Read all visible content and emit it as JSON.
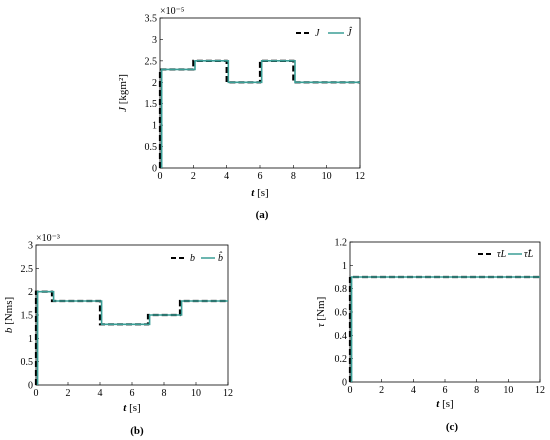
{
  "chart_data": [
    {
      "id": "a",
      "type": "line",
      "caption": "(a)",
      "xlabel_var": "t",
      "xlabel_unit": " [s]",
      "ylabel_var": "J",
      "ylabel_unit": " [kgm²]",
      "exponent": "×10⁻⁵",
      "xlim": [
        0,
        12
      ],
      "ylim": [
        0,
        3.5
      ],
      "xticks": [
        0,
        2,
        4,
        6,
        8,
        10,
        12
      ],
      "yticks": [
        0,
        0.5,
        1,
        1.5,
        2,
        2.5,
        3,
        3.5
      ],
      "series": [
        {
          "name": "J",
          "style": "dashed",
          "color": "#000000",
          "x": [
            0.0,
            0.0,
            2.0,
            2.0,
            4.0,
            4.0,
            6.0,
            6.0,
            8.0,
            8.0,
            12.0
          ],
          "y": [
            0.0,
            2.3,
            2.3,
            2.5,
            2.5,
            2.0,
            2.0,
            2.5,
            2.5,
            2.0,
            2.0
          ]
        },
        {
          "name": "Ĵ",
          "style": "solid",
          "color": "#3a9e96",
          "x": [
            0.1,
            0.1,
            2.1,
            2.1,
            4.1,
            4.1,
            6.1,
            6.1,
            8.1,
            8.1,
            12.0
          ],
          "y": [
            0.0,
            2.3,
            2.3,
            2.5,
            2.5,
            2.0,
            2.0,
            2.5,
            2.5,
            2.0,
            2.0
          ]
        }
      ],
      "legend": "top-right",
      "grid": false
    },
    {
      "id": "b",
      "type": "line",
      "caption": "(b)",
      "xlabel_var": "t",
      "xlabel_unit": " [s]",
      "ylabel_var": "b",
      "ylabel_unit": " [Nms]",
      "exponent": "×10⁻³",
      "xlim": [
        0,
        12
      ],
      "ylim": [
        0,
        3
      ],
      "xticks": [
        0,
        2,
        4,
        6,
        8,
        10,
        12
      ],
      "yticks": [
        0,
        0.5,
        1,
        1.5,
        2,
        2.5,
        3
      ],
      "series": [
        {
          "name": "b",
          "style": "dashed",
          "color": "#000000",
          "x": [
            0.0,
            0.0,
            1.0,
            1.0,
            4.0,
            4.0,
            7.0,
            7.0,
            9.0,
            9.0,
            12.0
          ],
          "y": [
            0.0,
            2.0,
            2.0,
            1.8,
            1.8,
            1.3,
            1.3,
            1.5,
            1.5,
            1.8,
            1.8
          ]
        },
        {
          "name": "b̂",
          "style": "solid",
          "color": "#3a9e96",
          "x": [
            0.1,
            0.1,
            1.1,
            1.1,
            4.1,
            4.1,
            7.1,
            7.1,
            9.1,
            9.1,
            12.0
          ],
          "y": [
            0.0,
            2.0,
            2.0,
            1.8,
            1.8,
            1.3,
            1.3,
            1.5,
            1.5,
            1.8,
            1.8
          ]
        }
      ],
      "legend": "top-right",
      "grid": false
    },
    {
      "id": "c",
      "type": "line",
      "caption": "(c)",
      "xlabel_var": "t",
      "xlabel_unit": " [s]",
      "ylabel_var": "τ",
      "ylabel_unit": " [Nm]",
      "exponent": "",
      "xlim": [
        0,
        12
      ],
      "ylim": [
        0,
        1.2
      ],
      "xticks": [
        0,
        2,
        4,
        6,
        8,
        10,
        12
      ],
      "yticks": [
        0,
        0.2,
        0.4,
        0.6,
        0.8,
        1,
        1.2
      ],
      "series": [
        {
          "name": "τL",
          "style": "dashed",
          "color": "#000000",
          "x": [
            0.0,
            0.0,
            12.0
          ],
          "y": [
            0.0,
            0.9,
            0.9
          ]
        },
        {
          "name": "τ̂L",
          "style": "solid",
          "color": "#3a9e96",
          "x": [
            0.1,
            0.1,
            12.0
          ],
          "y": [
            0.0,
            0.9,
            0.9
          ]
        }
      ],
      "legend": "top-right",
      "grid": false
    }
  ]
}
